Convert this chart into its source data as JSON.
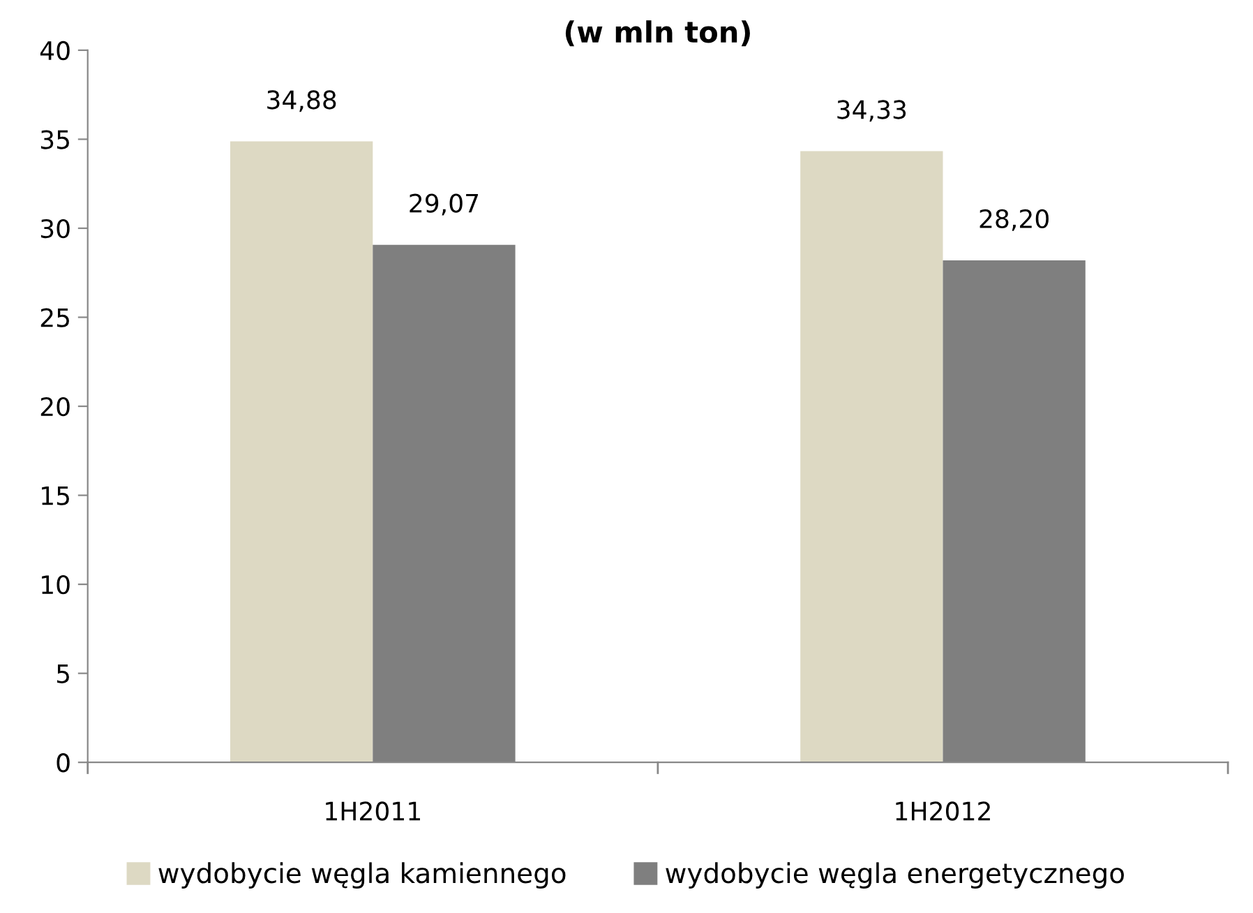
{
  "chart_data": {
    "type": "bar",
    "title": "(w mln ton)",
    "categories": [
      "1H2011",
      "1H2012"
    ],
    "series": [
      {
        "name": "wydobycie węgla kamiennego",
        "color": "#ddd9c3",
        "values": [
          34.88,
          34.33
        ],
        "value_labels": [
          "34,88",
          "34,33"
        ]
      },
      {
        "name": "wydobycie węgla energetycznego",
        "color": "#7f7f7f",
        "values": [
          29.07,
          28.2
        ],
        "value_labels": [
          "29,07",
          "28,20"
        ]
      }
    ],
    "ylim": [
      0,
      40
    ],
    "yticks": [
      0,
      5,
      10,
      15,
      20,
      25,
      30,
      35,
      40
    ],
    "grid": false,
    "legend": "bottom"
  }
}
